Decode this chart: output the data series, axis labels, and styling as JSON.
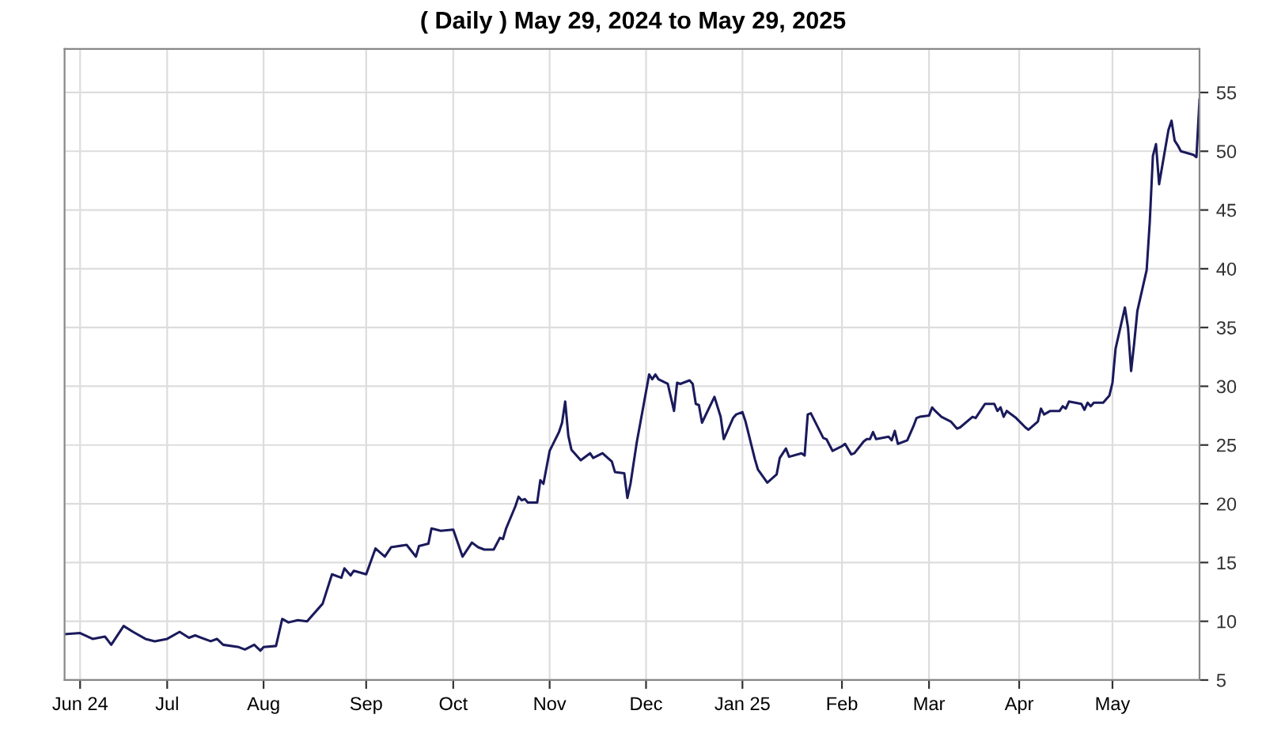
{
  "chart_data": {
    "type": "line",
    "title": "( Daily ) May 29, 2024 to May 29, 2025",
    "x": [
      "2024-05-29",
      "2024-06-03",
      "2024-06-07",
      "2024-06-11",
      "2024-06-13",
      "2024-06-17",
      "2024-06-20",
      "2024-06-24",
      "2024-06-27",
      "2024-07-01",
      "2024-07-05",
      "2024-07-08",
      "2024-07-10",
      "2024-07-15",
      "2024-07-17",
      "2024-07-19",
      "2024-07-24",
      "2024-07-26",
      "2024-07-29",
      "2024-07-31",
      "2024-08-01",
      "2024-08-05",
      "2024-08-07",
      "2024-08-09",
      "2024-08-12",
      "2024-08-15",
      "2024-08-20",
      "2024-08-23",
      "2024-08-26",
      "2024-08-27",
      "2024-08-29",
      "2024-08-30",
      "2024-09-03",
      "2024-09-06",
      "2024-09-09",
      "2024-09-11",
      "2024-09-16",
      "2024-09-19",
      "2024-09-20",
      "2024-09-23",
      "2024-09-24",
      "2024-09-27",
      "2024-10-01",
      "2024-10-04",
      "2024-10-07",
      "2024-10-09",
      "2024-10-11",
      "2024-10-14",
      "2024-10-16",
      "2024-10-17",
      "2024-10-18",
      "2024-10-21",
      "2024-10-22",
      "2024-10-23",
      "2024-10-24",
      "2024-10-25",
      "2024-10-28",
      "2024-10-29",
      "2024-10-30",
      "2024-11-01",
      "2024-11-04",
      "2024-11-05",
      "2024-11-06",
      "2024-11-07",
      "2024-11-08",
      "2024-11-11",
      "2024-11-14",
      "2024-11-15",
      "2024-11-18",
      "2024-11-21",
      "2024-11-22",
      "2024-11-25",
      "2024-11-26",
      "2024-11-27",
      "2024-11-29",
      "2024-12-03",
      "2024-12-04",
      "2024-12-05",
      "2024-12-06",
      "2024-12-09",
      "2024-12-11",
      "2024-12-12",
      "2024-12-13",
      "2024-12-16",
      "2024-12-17",
      "2024-12-18",
      "2024-12-19",
      "2024-12-20",
      "2024-12-24",
      "2024-12-26",
      "2024-12-27",
      "2024-12-30",
      "2024-12-31",
      "2025-01-02",
      "2025-01-03",
      "2025-01-06",
      "2025-01-07",
      "2025-01-10",
      "2025-01-13",
      "2025-01-14",
      "2025-01-16",
      "2025-01-17",
      "2025-01-21",
      "2025-01-22",
      "2025-01-23",
      "2025-01-24",
      "2025-01-28",
      "2025-01-29",
      "2025-01-31",
      "2025-02-03",
      "2025-02-04",
      "2025-02-06",
      "2025-02-07",
      "2025-02-10",
      "2025-02-11",
      "2025-02-12",
      "2025-02-13",
      "2025-02-14",
      "2025-02-18",
      "2025-02-19",
      "2025-02-20",
      "2025-02-21",
      "2025-02-24",
      "2025-02-26",
      "2025-02-27",
      "2025-02-28",
      "2025-03-03",
      "2025-03-04",
      "2025-03-05",
      "2025-03-07",
      "2025-03-10",
      "2025-03-12",
      "2025-03-13",
      "2025-03-17",
      "2025-03-18",
      "2025-03-19",
      "2025-03-21",
      "2025-03-24",
      "2025-03-25",
      "2025-03-26",
      "2025-03-27",
      "2025-03-28",
      "2025-03-31",
      "2025-04-03",
      "2025-04-04",
      "2025-04-07",
      "2025-04-08",
      "2025-04-09",
      "2025-04-11",
      "2025-04-14",
      "2025-04-15",
      "2025-04-16",
      "2025-04-17",
      "2025-04-21",
      "2025-04-22",
      "2025-04-23",
      "2025-04-24",
      "2025-04-25",
      "2025-04-28",
      "2025-04-30",
      "2025-05-01",
      "2025-05-02",
      "2025-05-05",
      "2025-05-06",
      "2025-05-07",
      "2025-05-08",
      "2025-05-09",
      "2025-05-12",
      "2025-05-13",
      "2025-05-14",
      "2025-05-15",
      "2025-05-16",
      "2025-05-19",
      "2025-05-20",
      "2025-05-21",
      "2025-05-22",
      "2025-05-23",
      "2025-05-27",
      "2025-05-28",
      "2025-05-29"
    ],
    "series": [
      {
        "color": "#1a1a5c",
        "values": [
          8.9,
          9.0,
          8.5,
          8.7,
          8.0,
          9.6,
          9.1,
          8.5,
          8.3,
          8.5,
          9.1,
          8.6,
          8.8,
          8.3,
          8.5,
          8.0,
          7.8,
          7.6,
          8.0,
          7.5,
          7.8,
          7.9,
          10.2,
          9.9,
          10.1,
          10.0,
          11.5,
          14.0,
          13.7,
          14.5,
          13.9,
          14.3,
          14.0,
          16.2,
          15.5,
          16.3,
          16.5,
          15.5,
          16.4,
          16.6,
          17.9,
          17.7,
          17.8,
          15.5,
          16.7,
          16.3,
          16.1,
          16.1,
          17.1,
          17.0,
          17.9,
          19.8,
          20.6,
          20.3,
          20.4,
          20.1,
          20.1,
          22.0,
          21.7,
          24.5,
          26.1,
          26.9,
          28.7,
          25.8,
          24.6,
          23.7,
          24.3,
          23.9,
          24.3,
          23.6,
          22.7,
          22.6,
          20.5,
          21.7,
          25.2,
          31.0,
          30.6,
          31.0,
          30.6,
          30.2,
          27.9,
          30.3,
          30.2,
          30.5,
          30.2,
          28.5,
          28.4,
          26.9,
          29.1,
          27.4,
          25.5,
          27.3,
          27.6,
          27.8,
          27.0,
          23.8,
          22.9,
          21.8,
          22.5,
          23.9,
          24.7,
          24.0,
          24.3,
          24.1,
          27.6,
          27.7,
          25.6,
          25.5,
          24.5,
          24.9,
          25.1,
          24.2,
          24.3,
          25.3,
          25.5,
          25.5,
          26.1,
          25.5,
          25.7,
          25.4,
          26.2,
          25.1,
          25.4,
          26.6,
          27.3,
          27.4,
          27.5,
          28.2,
          27.9,
          27.4,
          27.0,
          26.4,
          26.5,
          27.4,
          27.3,
          27.7,
          28.5,
          28.5,
          27.9,
          28.2,
          27.4,
          27.9,
          27.3,
          26.5,
          26.3,
          27.0,
          28.1,
          27.6,
          27.9,
          27.9,
          28.3,
          28.1,
          28.7,
          28.5,
          28.0,
          28.6,
          28.3,
          28.6,
          28.6,
          29.2,
          30.3,
          33.2,
          36.7,
          35.0,
          31.3,
          33.7,
          36.4,
          39.9,
          44.0,
          49.6,
          50.6,
          47.2,
          51.8,
          52.6,
          50.9,
          50.5,
          50.0,
          49.7,
          49.5,
          54.4
        ]
      }
    ],
    "xlim": [
      "2024-05-29",
      "2025-05-29"
    ],
    "xticks": [
      {
        "value": "2024-06-03",
        "label": "Jun 24"
      },
      {
        "value": "2024-07-01",
        "label": "Jul"
      },
      {
        "value": "2024-08-01",
        "label": "Aug"
      },
      {
        "value": "2024-09-03",
        "label": "Sep"
      },
      {
        "value": "2024-10-01",
        "label": "Oct"
      },
      {
        "value": "2024-11-01",
        "label": "Nov"
      },
      {
        "value": "2024-12-02",
        "label": "Dec"
      },
      {
        "value": "2025-01-02",
        "label": "Jan 25"
      },
      {
        "value": "2025-02-03",
        "label": "Feb"
      },
      {
        "value": "2025-03-03",
        "label": "Mar"
      },
      {
        "value": "2025-04-01",
        "label": "Apr"
      },
      {
        "value": "2025-05-01",
        "label": "May"
      }
    ],
    "ylim": [
      5,
      58.7
    ],
    "yticks": [
      5,
      10,
      15,
      20,
      25,
      30,
      35,
      40,
      45,
      50,
      55
    ],
    "grid": true,
    "line_style": "solid",
    "marker": "none"
  }
}
